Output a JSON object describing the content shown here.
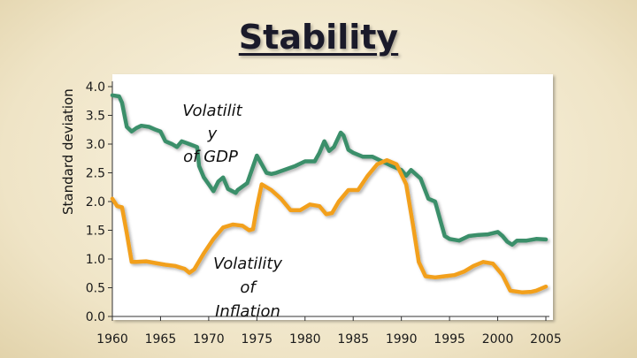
{
  "chart_data": {
    "type": "line",
    "title": "Stability",
    "xlabel": "",
    "ylabel": "Standard deviation",
    "xlim": [
      1960,
      2005
    ],
    "ylim": [
      0,
      4
    ],
    "x_ticks": [
      1960,
      1965,
      1970,
      1975,
      1980,
      1985,
      1990,
      1995,
      2000,
      2005
    ],
    "y_ticks": [
      "0.0",
      "0.5",
      "1.0",
      "1.5",
      "2.0",
      "2.5",
      "3.0",
      "3.5",
      "4.0"
    ],
    "colors": {
      "gdp": "#3a8f6a",
      "inflation": "#f2a01e"
    },
    "series": [
      {
        "name": "Volatility of GDP",
        "points": [
          [
            1960,
            3.85
          ],
          [
            1960.7,
            3.83
          ],
          [
            1961,
            3.72
          ],
          [
            1961.5,
            3.3
          ],
          [
            1962,
            3.22
          ],
          [
            1962.5,
            3.28
          ],
          [
            1963,
            3.32
          ],
          [
            1963.8,
            3.3
          ],
          [
            1964.5,
            3.25
          ],
          [
            1965,
            3.22
          ],
          [
            1965.5,
            3.05
          ],
          [
            1966.2,
            3.0
          ],
          [
            1966.7,
            2.95
          ],
          [
            1967.2,
            3.05
          ],
          [
            1968,
            3.0
          ],
          [
            1968.8,
            2.95
          ],
          [
            1969,
            2.62
          ],
          [
            1969.5,
            2.42
          ],
          [
            1970,
            2.3
          ],
          [
            1970.5,
            2.18
          ],
          [
            1971,
            2.35
          ],
          [
            1971.5,
            2.42
          ],
          [
            1972,
            2.22
          ],
          [
            1972.8,
            2.15
          ],
          [
            1973,
            2.2
          ],
          [
            1974,
            2.32
          ],
          [
            1975,
            2.8
          ],
          [
            1975.5,
            2.65
          ],
          [
            1976,
            2.5
          ],
          [
            1976.5,
            2.48
          ],
          [
            1977,
            2.5
          ],
          [
            1978,
            2.56
          ],
          [
            1979,
            2.62
          ],
          [
            1980,
            2.7
          ],
          [
            1981,
            2.7
          ],
          [
            1981.5,
            2.85
          ],
          [
            1982,
            3.05
          ],
          [
            1982.5,
            2.88
          ],
          [
            1983,
            2.95
          ],
          [
            1983.7,
            3.2
          ],
          [
            1984,
            3.15
          ],
          [
            1984.5,
            2.9
          ],
          [
            1985,
            2.85
          ],
          [
            1986,
            2.78
          ],
          [
            1987,
            2.78
          ],
          [
            1988,
            2.7
          ],
          [
            1989,
            2.62
          ],
          [
            1990,
            2.55
          ],
          [
            1990.5,
            2.45
          ],
          [
            1991,
            2.55
          ],
          [
            1992,
            2.4
          ],
          [
            1992.8,
            2.05
          ],
          [
            1993.5,
            2.0
          ],
          [
            1994,
            1.7
          ],
          [
            1994.5,
            1.4
          ],
          [
            1995,
            1.35
          ],
          [
            1996,
            1.32
          ],
          [
            1997,
            1.4
          ],
          [
            1998,
            1.42
          ],
          [
            1999,
            1.43
          ],
          [
            2000,
            1.47
          ],
          [
            2000.5,
            1.4
          ],
          [
            2001,
            1.3
          ],
          [
            2001.5,
            1.25
          ],
          [
            2002,
            1.32
          ],
          [
            2003,
            1.32
          ],
          [
            2004,
            1.35
          ],
          [
            2005,
            1.34
          ]
        ]
      },
      {
        "name": "Volatility of Inflation",
        "points": [
          [
            1960,
            2.05
          ],
          [
            1960.5,
            1.92
          ],
          [
            1961,
            1.9
          ],
          [
            1961.5,
            1.45
          ],
          [
            1962,
            0.95
          ],
          [
            1962.5,
            0.95
          ],
          [
            1963.5,
            0.96
          ],
          [
            1964.5,
            0.93
          ],
          [
            1965.5,
            0.9
          ],
          [
            1966.5,
            0.88
          ],
          [
            1967.5,
            0.83
          ],
          [
            1968,
            0.76
          ],
          [
            1968.5,
            0.82
          ],
          [
            1969.5,
            1.1
          ],
          [
            1970.5,
            1.35
          ],
          [
            1971.5,
            1.55
          ],
          [
            1972.5,
            1.6
          ],
          [
            1973.5,
            1.58
          ],
          [
            1974.2,
            1.5
          ],
          [
            1974.6,
            1.52
          ],
          [
            1975,
            1.9
          ],
          [
            1975.5,
            2.3
          ],
          [
            1976.5,
            2.2
          ],
          [
            1977.5,
            2.05
          ],
          [
            1978.5,
            1.85
          ],
          [
            1979.5,
            1.85
          ],
          [
            1980.5,
            1.95
          ],
          [
            1981.5,
            1.92
          ],
          [
            1982.2,
            1.78
          ],
          [
            1982.8,
            1.8
          ],
          [
            1983.5,
            2.0
          ],
          [
            1984.5,
            2.2
          ],
          [
            1985.5,
            2.2
          ],
          [
            1986.5,
            2.45
          ],
          [
            1987.5,
            2.65
          ],
          [
            1988.5,
            2.72
          ],
          [
            1989.5,
            2.65
          ],
          [
            1990.5,
            2.3
          ],
          [
            1991.2,
            1.6
          ],
          [
            1991.8,
            0.95
          ],
          [
            1992.5,
            0.7
          ],
          [
            1993.5,
            0.68
          ],
          [
            1994.5,
            0.7
          ],
          [
            1995.5,
            0.72
          ],
          [
            1996.5,
            0.78
          ],
          [
            1997.5,
            0.88
          ],
          [
            1998.5,
            0.95
          ],
          [
            1999.5,
            0.92
          ],
          [
            2000.5,
            0.72
          ],
          [
            2001.3,
            0.45
          ],
          [
            2002.5,
            0.42
          ],
          [
            2003.5,
            0.43
          ],
          [
            2004,
            0.45
          ],
          [
            2005,
            0.52
          ]
        ]
      }
    ],
    "annotations": {
      "gdp": [
        "Volatilit",
        "y",
        "of GDP"
      ],
      "inflation": [
        "Volatility",
        "of",
        "Inflation"
      ]
    }
  }
}
